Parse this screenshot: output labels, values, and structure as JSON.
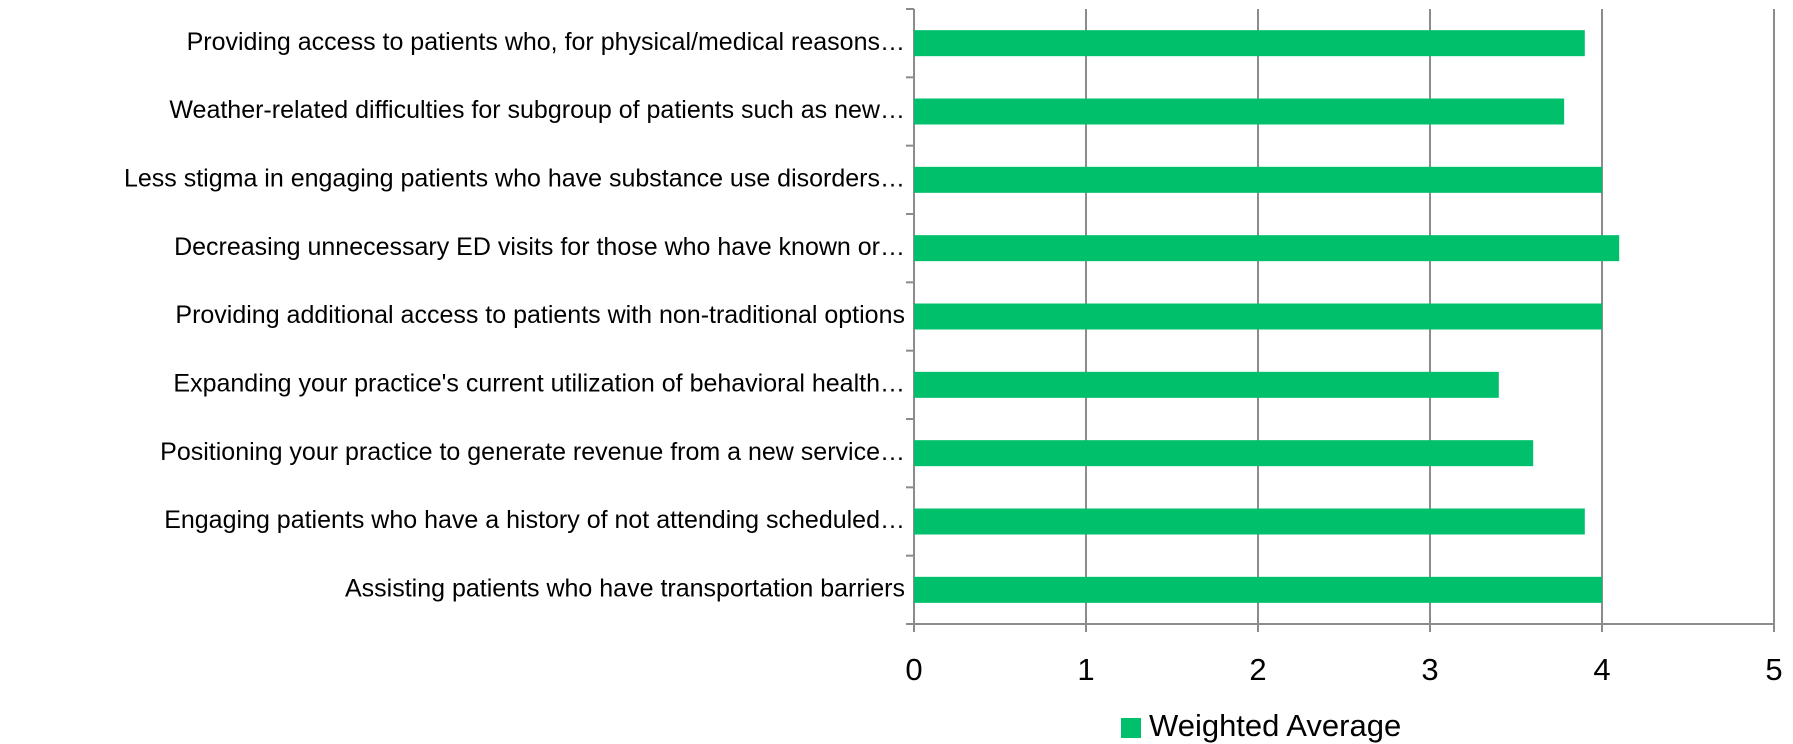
{
  "chart_data": {
    "type": "bar",
    "orientation": "horizontal",
    "categories": [
      "Providing access to patients who, for physical/medical reasons…",
      "Weather-related difficulties for subgroup of patients such as new…",
      "Less stigma in engaging patients who have substance use disorders…",
      "Decreasing unnecessary ED visits for those who have known or…",
      "Providing additional access to patients with non-traditional options",
      "Expanding your practice's current utilization of behavioral health…",
      "Positioning your practice to generate revenue from a new service…",
      "Engaging patients who have a history of not attending scheduled…",
      "Assisting patients who have transportation barriers"
    ],
    "series": [
      {
        "name": "Weighted Average",
        "color": "#00c06b",
        "values": [
          3.9,
          3.78,
          4.0,
          4.1,
          4.0,
          3.4,
          3.6,
          3.9,
          4.0
        ]
      }
    ],
    "xlim": [
      0,
      5
    ],
    "xticks": [
      0,
      1,
      2,
      3,
      4,
      5
    ],
    "grid": true,
    "legend": "bottom"
  }
}
